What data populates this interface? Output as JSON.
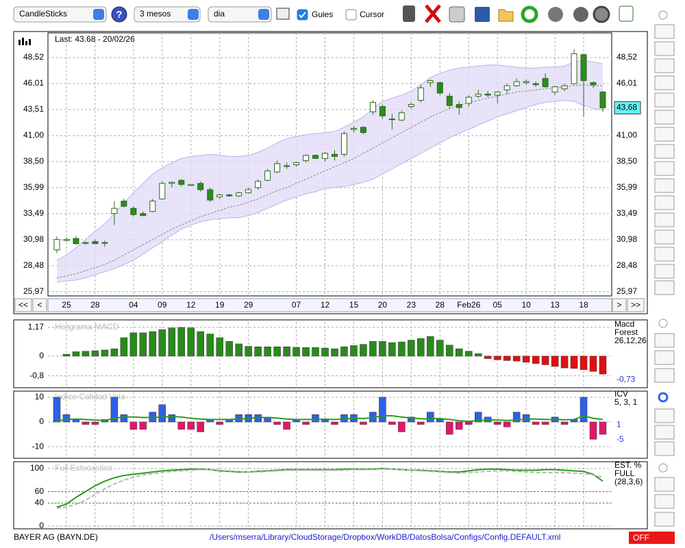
{
  "toolbar": {
    "chart_type": "CandleSticks",
    "help": "?",
    "period": "3 mesos",
    "interval": "dia",
    "guides": {
      "label": "Guies",
      "checked": true
    },
    "cursor": {
      "label": "Cursor",
      "checked": false
    }
  },
  "navigation": [
    "<<",
    "<",
    ">",
    ">>"
  ],
  "footer": {
    "security": "BAYER AG (BAYN.DE)",
    "config_path": "/Users/mserra/Library/CloudStorage/Dropbox/WorkDB/DatosBolsa/Configs/Config.DEFAULT.xml",
    "status": "OFF"
  },
  "chart_data": [
    {
      "type": "candlestick",
      "annotation": "Last: 43.68 - 20/02/26",
      "categories": [
        null,
        "25",
        null,
        null,
        "28",
        null,
        null,
        null,
        "04",
        null,
        null,
        "09",
        null,
        null,
        "12",
        null,
        null,
        "19",
        null,
        null,
        "29",
        null,
        null,
        null,
        null,
        "07",
        null,
        null,
        "12",
        null,
        null,
        "15",
        null,
        null,
        "20",
        null,
        null,
        "23",
        null,
        null,
        "28",
        null,
        null,
        "Feb26",
        null,
        null,
        "05",
        null,
        null,
        "10",
        null,
        null,
        "13",
        null,
        null,
        "18",
        null,
        null
      ],
      "open": [
        30.0,
        30.9,
        31.1,
        30.7,
        30.8,
        30.7,
        33.5,
        34.7,
        34.0,
        33.5,
        33.7,
        34.9,
        36.4,
        36.7,
        36.2,
        36.4,
        35.8,
        35.1,
        35.3,
        35.2,
        35.5,
        36.0,
        36.7,
        37.5,
        38.1,
        38.2,
        38.6,
        39.1,
        38.8,
        39.2,
        39.2,
        41.6,
        41.8,
        43.3,
        43.8,
        42.6,
        42.5,
        43.8,
        44.4,
        46.1,
        46.1,
        44.8,
        44.0,
        44.1,
        44.8,
        45.0,
        44.9,
        45.4,
        45.8,
        46.1,
        46.0,
        46.5,
        45.2,
        45.5,
        46.0,
        48.8,
        46.1,
        45.2
      ],
      "high": [
        31.3,
        31.2,
        31.3,
        30.8,
        31.0,
        30.9,
        34.7,
        34.9,
        34.2,
        33.7,
        34.9,
        36.6,
        36.6,
        36.8,
        36.3,
        36.6,
        36.0,
        35.4,
        35.4,
        35.6,
        36.0,
        36.8,
        37.8,
        38.6,
        38.4,
        38.5,
        39.2,
        39.2,
        39.4,
        39.6,
        41.4,
        41.9,
        41.9,
        44.4,
        44.0,
        43.1,
        43.4,
        44.2,
        45.9,
        46.4,
        46.2,
        45.1,
        44.3,
        44.9,
        45.4,
        45.3,
        45.3,
        46.0,
        46.5,
        46.4,
        46.2,
        47.0,
        45.8,
        46.0,
        49.3,
        48.9,
        46.2,
        45.3
      ],
      "low": [
        29.7,
        30.8,
        30.5,
        30.5,
        30.6,
        30.3,
        32.4,
        34.1,
        33.2,
        33.3,
        33.6,
        34.9,
        36.0,
        36.1,
        36.2,
        35.6,
        34.6,
        34.9,
        35.1,
        35.1,
        35.4,
        35.8,
        36.6,
        37.4,
        37.8,
        38.0,
        38.4,
        38.8,
        38.5,
        38.6,
        39.0,
        41.3,
        41.1,
        43.0,
        42.6,
        41.6,
        42.4,
        43.6,
        44.2,
        45.7,
        44.9,
        43.6,
        43.0,
        43.8,
        44.6,
        44.7,
        44.1,
        45.0,
        45.7,
        45.9,
        45.7,
        45.6,
        44.9,
        45.3,
        45.9,
        42.8,
        45.6,
        43.3
      ],
      "close": [
        31.0,
        31.0,
        30.6,
        30.7,
        30.6,
        30.7,
        34.0,
        34.2,
        33.4,
        33.3,
        34.7,
        36.4,
        36.5,
        36.3,
        36.3,
        35.8,
        34.8,
        35.3,
        35.2,
        35.5,
        35.8,
        36.6,
        37.6,
        38.3,
        38.1,
        38.4,
        39.1,
        38.8,
        39.3,
        39.0,
        41.2,
        41.7,
        41.3,
        44.2,
        42.9,
        42.6,
        43.2,
        44.0,
        45.6,
        46.3,
        45.1,
        43.9,
        43.7,
        44.7,
        45.0,
        44.9,
        45.2,
        45.8,
        46.2,
        46.2,
        45.9,
        45.7,
        45.7,
        45.8,
        48.9,
        46.3,
        45.9,
        43.68
      ],
      "up_color": "#ffffff",
      "down_color": "#2e8b1e",
      "wick_color": "#2a6a1a",
      "bands": {
        "fill": "#e2dcf8",
        "line_color": "#b9b0e6",
        "middle_color": "#888888",
        "upper": [
          29.0,
          29.5,
          30.2,
          31.0,
          31.8,
          32.5,
          33.5,
          34.5,
          35.5,
          36.4,
          37.3,
          37.9,
          38.4,
          38.8,
          39.0,
          39.1,
          39.2,
          39.1,
          39.0,
          39.0,
          39.1,
          39.4,
          39.8,
          40.3,
          40.7,
          40.9,
          41.1,
          41.2,
          41.3,
          41.4,
          41.8,
          42.3,
          42.8,
          43.6,
          44.3,
          44.6,
          44.9,
          45.3,
          45.9,
          46.6,
          47.0,
          47.3,
          47.5,
          47.6,
          47.7,
          47.8,
          47.8,
          47.7,
          47.6,
          47.5,
          47.5,
          47.6,
          47.6,
          47.7,
          48.1,
          48.2,
          48.1,
          47.9
        ],
        "middle": [
          27.3,
          27.5,
          27.7,
          28.0,
          28.3,
          28.6,
          29.0,
          29.5,
          30.0,
          30.5,
          31.0,
          31.5,
          32.0,
          32.4,
          32.8,
          33.2,
          33.5,
          33.8,
          34.1,
          34.3,
          34.6,
          34.9,
          35.3,
          35.7,
          36.0,
          36.4,
          36.8,
          37.2,
          37.6,
          38.0,
          38.4,
          38.8,
          39.3,
          39.8,
          40.3,
          40.8,
          41.3,
          41.8,
          42.3,
          42.8,
          43.2,
          43.6,
          43.9,
          44.2,
          44.4,
          44.6,
          44.8,
          45.0,
          45.2,
          45.3,
          45.4,
          45.5,
          45.6,
          45.7,
          45.8,
          45.9,
          45.8,
          45.8
        ],
        "lower": [
          26.9,
          27.0,
          27.1,
          27.3,
          27.6,
          27.9,
          28.2,
          28.6,
          29.0,
          29.6,
          30.2,
          30.8,
          31.4,
          32.0,
          32.4,
          32.7,
          32.9,
          33.0,
          33.1,
          33.1,
          33.3,
          33.6,
          34.0,
          34.4,
          34.8,
          35.1,
          35.4,
          35.6,
          35.9,
          36.0,
          36.1,
          36.3,
          36.5,
          36.8,
          37.3,
          37.8,
          38.3,
          38.8,
          39.3,
          39.8,
          40.3,
          40.8,
          41.2,
          41.6,
          42.0,
          42.4,
          42.8,
          43.1,
          43.4,
          43.7,
          44.0,
          44.2,
          44.3,
          44.4,
          44.3,
          43.9,
          43.6,
          43.5
        ]
      },
      "last_value": {
        "value": 43.68,
        "label": "43,68"
      },
      "ylim": [
        25.57,
        50.89
      ],
      "yticks": [
        {
          "value": 25.97,
          "label": "25,97"
        },
        {
          "value": 28.48,
          "label": "28,48"
        },
        {
          "value": 30.98,
          "label": "30,98"
        },
        {
          "value": 33.49,
          "label": "33,49"
        },
        {
          "value": 35.99,
          "label": "35,99"
        },
        {
          "value": 38.5,
          "label": "38,50"
        },
        {
          "value": 41.0,
          "label": "41,00"
        },
        {
          "value": 43.51,
          "label": "43,51"
        },
        {
          "value": 46.01,
          "label": "46,01"
        },
        {
          "value": 48.52,
          "label": "48,52"
        }
      ],
      "grid": true
    },
    {
      "type": "bar",
      "watermark": "Histgrama MACD",
      "legend": [
        "Macd",
        "Forest",
        "26,12,26"
      ],
      "values": [
        null,
        0.08,
        0.18,
        0.2,
        0.22,
        0.25,
        0.3,
        0.75,
        0.95,
        0.95,
        1.0,
        1.08,
        1.15,
        1.17,
        1.15,
        1.0,
        0.9,
        0.75,
        0.6,
        0.5,
        0.4,
        0.38,
        0.38,
        0.38,
        0.38,
        0.36,
        0.35,
        0.35,
        0.33,
        0.3,
        0.38,
        0.43,
        0.48,
        0.6,
        0.6,
        0.55,
        0.58,
        0.65,
        0.72,
        0.8,
        0.65,
        0.45,
        0.3,
        0.2,
        0.1,
        -0.1,
        -0.15,
        -0.18,
        -0.2,
        -0.25,
        -0.3,
        -0.35,
        -0.42,
        -0.48,
        -0.5,
        -0.55,
        -0.62,
        -0.73
      ],
      "positive_color": "#2a8a1c",
      "negative_color": "#e01010",
      "last_values": [
        {
          "value": -0.73,
          "label": "-0,73"
        }
      ],
      "ylim": [
        -1.2,
        1.39
      ],
      "yticks": [
        {
          "value": 1.17,
          "label": "1,17"
        },
        0,
        {
          "value": -0.8,
          "label": "-0,8"
        }
      ],
      "grid": true
    },
    {
      "type": "bar",
      "watermark": "Indice Calidad Vela",
      "legend": [
        "ICV",
        "5, 3, 1"
      ],
      "values": [
        10,
        3,
        1,
        -1,
        -1,
        1,
        10,
        3,
        -3,
        -3,
        4,
        7,
        3,
        -3,
        -3,
        -4,
        1,
        -1,
        1,
        3,
        3,
        3,
        2,
        -1,
        -3,
        1,
        -1,
        3,
        1,
        -1,
        3,
        3,
        -1,
        4,
        10,
        -1,
        -4,
        2,
        -1,
        4,
        1,
        -5,
        -3,
        -1,
        4,
        2,
        -1,
        -2,
        4,
        3,
        -1,
        -1,
        2,
        -1,
        1,
        10,
        -7,
        -5
      ],
      "positive_color": "#2f5fe6",
      "negative_color": "#e0186a",
      "line": {
        "color": "#2a9a1c",
        "values": [
          0.5,
          1,
          1.2,
          1,
          0.8,
          0.6,
          1.5,
          2,
          2,
          1.8,
          1.8,
          2,
          2.2,
          2,
          1.5,
          1.2,
          1,
          1,
          1,
          1.2,
          1.5,
          1.8,
          1.8,
          1.6,
          1.2,
          1,
          1,
          1,
          1.1,
          1,
          1.2,
          1.5,
          1.4,
          1.8,
          2.5,
          2.5,
          2,
          1.6,
          1.3,
          1.3,
          1.4,
          1,
          0.5,
          0.3,
          0.6,
          0.8,
          0.8,
          0.6,
          0.8,
          1.2,
          1.2,
          1,
          1,
          0.9,
          1,
          2.5,
          1.5,
          1
        ]
      },
      "last_values": [
        1,
        -5
      ],
      "ylim": [
        -14.4,
        12.2
      ],
      "yticks": [
        10,
        0,
        -10
      ],
      "grid": true
    },
    {
      "type": "line",
      "watermark": "Full Estocastico",
      "legend": [
        "EST. %",
        "FULL",
        "(28,3,6)"
      ],
      "series": [
        {
          "color": "#2a9a1c",
          "width": 2,
          "values": [
            33,
            38,
            50,
            60,
            70,
            78,
            84,
            88,
            90,
            92,
            94,
            96,
            97,
            98,
            99,
            99,
            98,
            96,
            95,
            94,
            94,
            95,
            96,
            97,
            98,
            98,
            98,
            98,
            98,
            98,
            99,
            99,
            99,
            99,
            100,
            99,
            98,
            97,
            97,
            96,
            95,
            94,
            94,
            96,
            98,
            99,
            99,
            98,
            97,
            97,
            97,
            98,
            98,
            97,
            96,
            95,
            90,
            78
          ]
        },
        {
          "color": "#b8b8b8",
          "width": 2,
          "dashed": true,
          "values": [
            31,
            33,
            38,
            45,
            55,
            65,
            73,
            80,
            85,
            89,
            91,
            93,
            95,
            96,
            97,
            98,
            98,
            97,
            96,
            95,
            94,
            94,
            95,
            96,
            97,
            97,
            97,
            97,
            97,
            97,
            97,
            98,
            98,
            98,
            99,
            99,
            98,
            97,
            96,
            95,
            94,
            93,
            92,
            93,
            94,
            95,
            96,
            96,
            95,
            94,
            93,
            93,
            93,
            93,
            92,
            91,
            89,
            85
          ]
        }
      ],
      "guide_lines": [
        {
          "value": 60,
          "color": "#b03030"
        },
        {
          "value": 40,
          "color": "#2a8a1c"
        }
      ],
      "ylim": [
        -2.4,
        109.5
      ],
      "yticks": [
        100,
        60,
        40,
        0
      ],
      "grid": true
    }
  ]
}
